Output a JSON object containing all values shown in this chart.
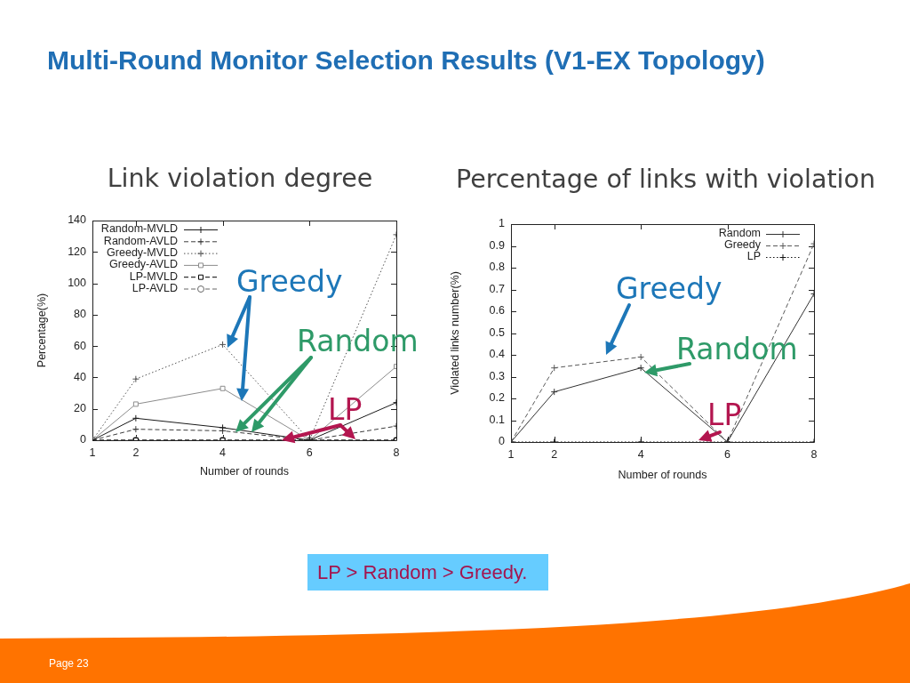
{
  "chart_data": [
    {
      "type": "line",
      "title": "Link violation degree",
      "xlabel": "Number of rounds",
      "ylabel": "Percentage(%)",
      "x": [
        1,
        2,
        4,
        6,
        8
      ],
      "xlim": [
        1,
        8
      ],
      "xticks": [
        1,
        2,
        4,
        6,
        8
      ],
      "ylim": [
        0,
        140
      ],
      "yticks": [
        0,
        20,
        40,
        60,
        80,
        100,
        120,
        140
      ],
      "legend": "top left",
      "series": [
        {
          "name": "Random-MVLD",
          "color": "#1a1a1a",
          "marker": "cross",
          "line_style": "solid",
          "values": [
            0,
            14,
            8,
            0,
            24
          ]
        },
        {
          "name": "Random-AVLD",
          "color": "#3c3c3c",
          "marker": "cross",
          "line_style": "dashed",
          "values": [
            0,
            7,
            6,
            0,
            9
          ]
        },
        {
          "name": "Greedy-MVLD",
          "color": "#505050",
          "marker": "cross",
          "line_style": "dotted",
          "values": [
            0,
            39,
            61,
            0,
            131
          ]
        },
        {
          "name": "Greedy-AVLD",
          "color": "#8c8c8c",
          "marker": "square",
          "line_style": "solid",
          "values": [
            0,
            23,
            33,
            0,
            47
          ]
        },
        {
          "name": "LP-MVLD",
          "color": "#000000",
          "marker": "square",
          "line_style": "dashed",
          "values": [
            0,
            0,
            0,
            0,
            0
          ]
        },
        {
          "name": "LP-AVLD",
          "color": "#666666",
          "marker": "circle",
          "line_style": "dashed",
          "values": [
            0,
            0,
            0,
            0,
            0
          ]
        }
      ],
      "annotations": [
        "Multi-Round Monitor Selection Results (V1-EX Topology)",
        "Greedy",
        "Random",
        "LP",
        "LP > Random > Greedy.",
        "Page 23"
      ]
    },
    {
      "type": "line",
      "title": "Percentage of links with violation",
      "xlabel": "Number of rounds",
      "ylabel": "Violated links number(%)",
      "x": [
        1,
        2,
        4,
        6,
        8
      ],
      "xlim": [
        1,
        8
      ],
      "xticks": [
        1,
        2,
        4,
        6,
        8
      ],
      "ylim": [
        0,
        1
      ],
      "yticks": [
        0,
        0.1,
        0.2,
        0.3,
        0.4,
        0.5,
        0.6,
        0.7,
        0.8,
        0.9,
        1
      ],
      "legend": "top right",
      "series": [
        {
          "name": "Random",
          "color": "#333333",
          "marker": "cross",
          "line_style": "solid",
          "values": [
            0,
            0.23,
            0.34,
            0,
            0.68
          ]
        },
        {
          "name": "Greedy",
          "color": "#5a5a5a",
          "marker": "cross",
          "line_style": "dashed",
          "values": [
            0,
            0.34,
            0.39,
            0,
            0.91
          ]
        },
        {
          "name": "LP",
          "color": "#111111",
          "marker": "cross",
          "line_style": "dotted",
          "values": [
            0,
            0,
            0,
            0,
            0
          ]
        }
      ],
      "annotations": [
        "Greedy",
        "Random",
        "LP"
      ]
    }
  ]
}
